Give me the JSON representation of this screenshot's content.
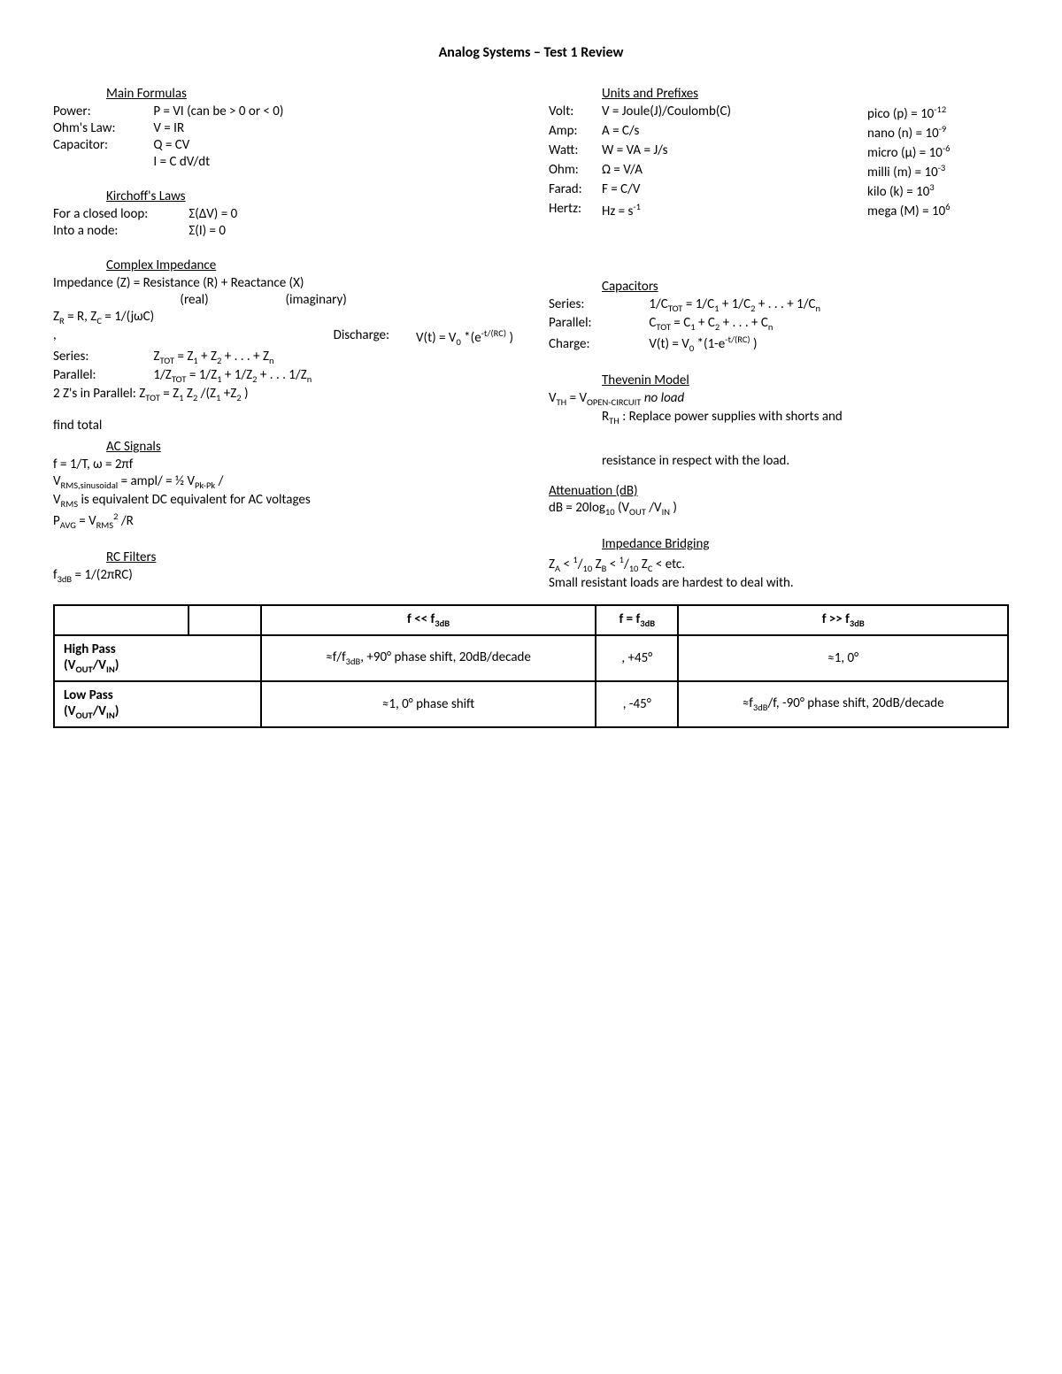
{
  "title": "Analog Systems – Test 1 Review",
  "mainFormulas": {
    "head": "Main Formulas",
    "power": {
      "lbl": "Power:",
      "val": "P = VI    (can be > 0   or  < 0)"
    },
    "ohm": {
      "lbl": "Ohm's Law:",
      "val": "V = IR"
    },
    "cap1": {
      "lbl": "Capacitor:",
      "val": "Q = CV"
    },
    "cap2": {
      "val": "I = C dV/dt"
    }
  },
  "kirchoff": {
    "head": "Kirchoff's Laws",
    "loop": {
      "lbl": "For a closed loop:",
      "val": "Σ(ΔV) = 0"
    },
    "node": {
      "lbl": "Into a node:",
      "val": "Σ(I) = 0"
    }
  },
  "complex": {
    "head": "Complex Impedance",
    "l1": "Impedance (Z) = Resistance (R) + Reactance (X)",
    "l2a": "(real)",
    "l2b": "(imaginary)",
    "l3": "Z",
    "l3r": " = R,   Z",
    "l3c": " = 1/(jωC)",
    "l4a": ",",
    "l4b": "Discharge:",
    "l4c": "V(t) = V",
    "l4c2": "*(e",
    "l4c3": ")",
    "series": {
      "lbl": "Series:",
      "val": "Z",
      "val2": " = Z",
      "val3": " + Z",
      "val4": " + . . . + Z"
    },
    "parallel": {
      "lbl": "Parallel:",
      "val": "1/Z",
      "val2": " = 1/Z",
      "val3": " + 1/Z",
      "val4": " + . . . 1/Z"
    },
    "two": {
      "lbl": "2 Z's in Parallel:",
      "val": "Z",
      "val2": " = Z",
      "val3": "Z",
      "val4": "/(Z",
      "val5": "+Z",
      "val6": ")"
    }
  },
  "findtotal": "find total",
  "ac": {
    "head": "AC Signals",
    "l1": "f = 1/T,   ω = 2πf",
    "l2a": "V",
    "l2b": " = ampl/  = ½ V",
    "l2c": "/",
    "l3a": "V",
    "l3b": " is equivalent DC equivalent for AC voltages",
    "l4a": "P",
    "l4b": " = V",
    "l4c": "/R"
  },
  "rc": {
    "head": "RC Filters",
    "l1a": "f",
    "l1b": " = 1/(2πRC)"
  },
  "units": {
    "head": "Units and Prefixes",
    "rows": [
      {
        "l": "Volt:",
        "m": "V = Joule(J)/Coulomb(C)",
        "r1": "pico (p) = 10",
        "r2": "-12"
      },
      {
        "l": "Amp:",
        "m": "A = C/s",
        "r1": "nano (n) = 10",
        "r2": "-9"
      },
      {
        "l": "Watt:",
        "m": "W = VA = J/s",
        "r1": "micro (μ) = 10",
        "r2": "-6"
      },
      {
        "l": "Ohm:",
        "m": "Ω = V/A",
        "r1": "milli (m) = 10",
        "r2": "-3"
      },
      {
        "l": "Farad:",
        "m": "F = C/V",
        "r1": "kilo (k) = 10",
        "r2": "3"
      },
      {
        "l": "Hertz:",
        "m": "Hz = s",
        "msup": "-1",
        "r1": "mega (M) = 10",
        "r2": "6"
      }
    ]
  },
  "caps": {
    "head": "Capacitors",
    "series": {
      "lbl": "Series:",
      "v": "1/C",
      "v2": " = 1/C",
      "v3": " + 1/C",
      "v4": " + . . . + 1/C"
    },
    "parallel": {
      "lbl": "Parallel:",
      "v": "C",
      "v2": " = C",
      "v3": " + C",
      "v4": " + . . . + C"
    },
    "charge": {
      "lbl": "Charge:",
      "v": "V(t) = V",
      "v2": "*(1-e",
      "v3": ")"
    }
  },
  "thevenin": {
    "head": "Thevenin Model",
    "l1a": "V",
    "l1b": " = V",
    "l1c": "   ",
    "l1d": "no load",
    "l2a": "R",
    "l2b": ": Replace power supplies with shorts and",
    "l3": "resistance in respect with the load."
  },
  "atten": {
    "head": "Attenuation (dB)",
    "l1a": "dB = 20log",
    "l1b": "(V",
    "l1c": "/V",
    "l1d": ")"
  },
  "bridge": {
    "head": "Impedance Bridging",
    "l1a": "Z",
    "l1b": " <  ",
    "l1c": "Z",
    "l1d": " <  ",
    "l1e": "Z",
    "l1f": "  <  etc.",
    "l2": "Small resistant loads are hardest to deal with."
  },
  "table": {
    "hblank": "",
    "h1": "f << f",
    "h2": "f = f",
    "h3": "f >> f",
    "rows": [
      {
        "head1": "High Pass",
        "head2": "(V",
        "head3": "/V",
        "head4": ")",
        "c1a": "≈f/f",
        "c1b": ", +90° phase shift, 20dB/decade",
        "c2": ", +45°",
        "c3": "≈1, 0°"
      },
      {
        "head1": "Low Pass",
        "head2": "(V",
        "head3": "/V",
        "head4": ")",
        "c1": "≈1, 0° phase shift",
        "c2": ", -45°",
        "c3a": "≈f",
        "c3b": "/f, -90° phase shift, 20dB/decade"
      }
    ]
  }
}
